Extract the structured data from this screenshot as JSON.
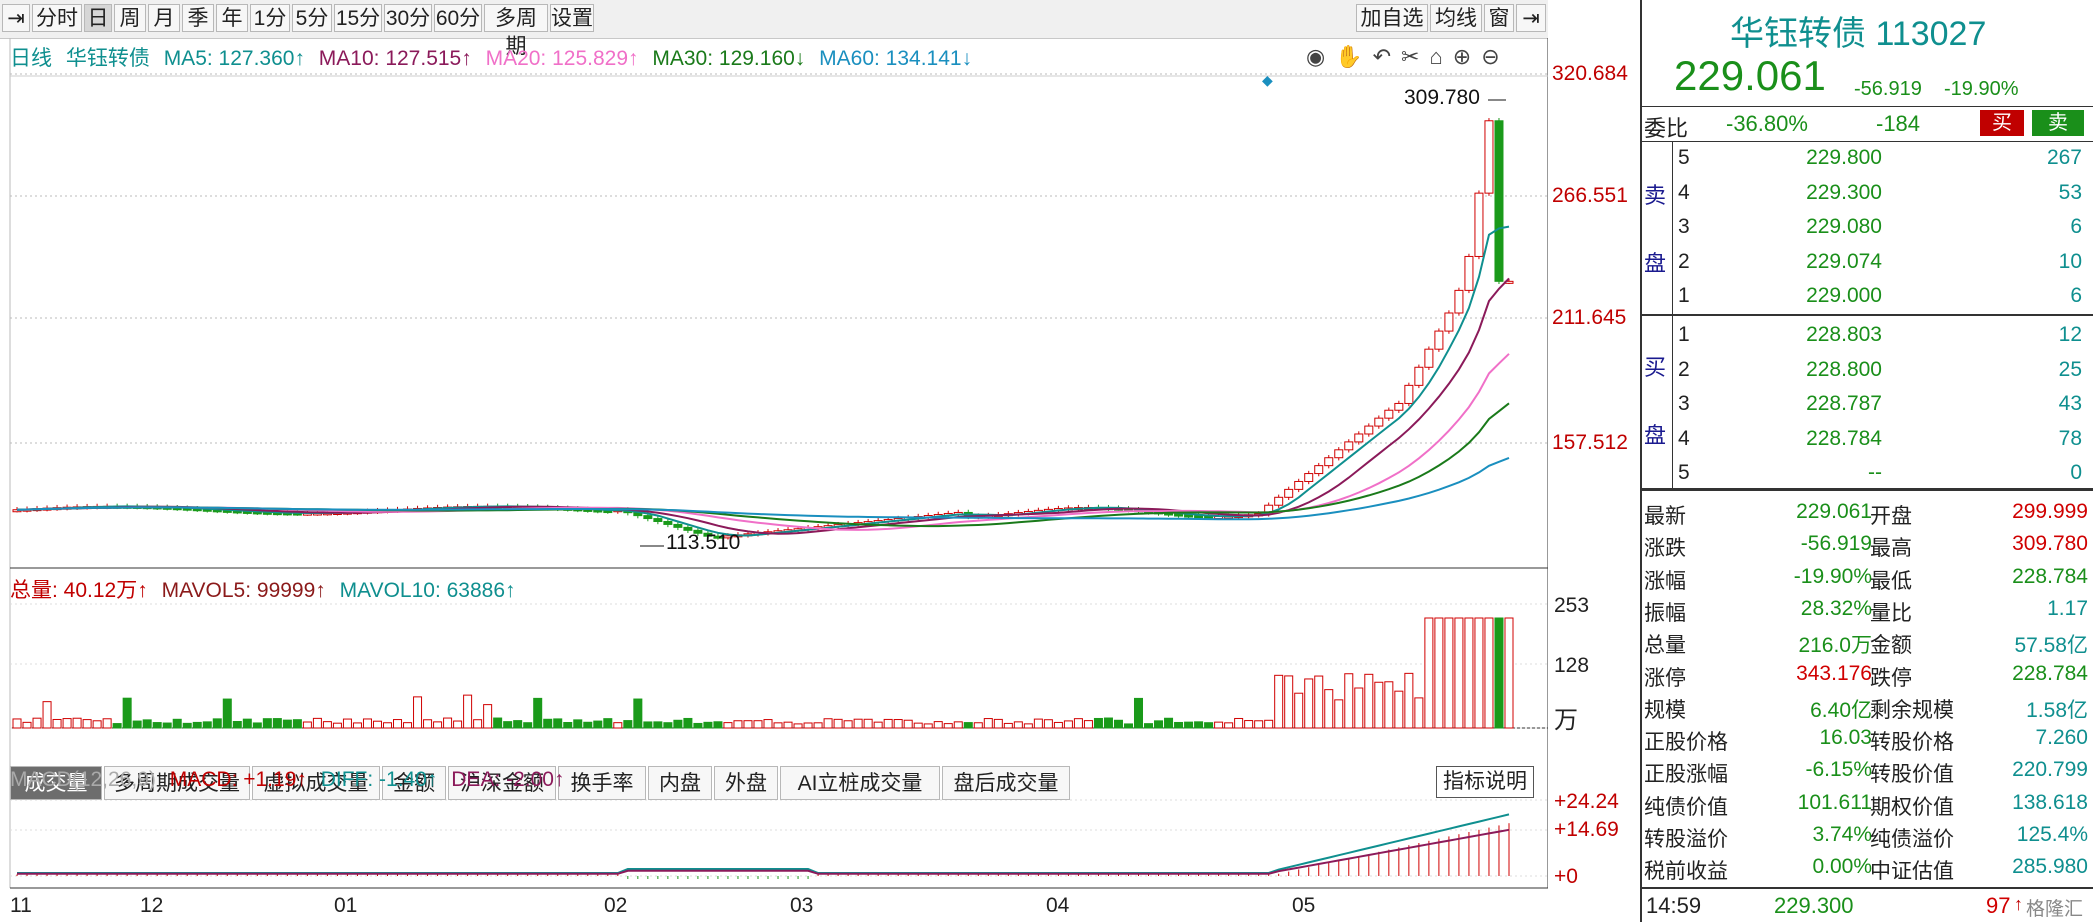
{
  "toolbar": {
    "periods": [
      "分时",
      "日",
      "周",
      "月",
      "季",
      "年",
      "1分",
      "5分",
      "15分",
      "30分",
      "60分",
      "多周期",
      "设置"
    ],
    "active": "日",
    "right_buttons": [
      "加自选",
      "均线",
      "窗"
    ]
  },
  "legend": {
    "label": "日线",
    "name": "华钰转债",
    "ma5": "MA5: 127.360↑",
    "ma10": "MA10: 127.515↑",
    "ma20": "MA20: 125.829↑",
    "ma30": "MA30: 129.160↓",
    "ma60": "MA60: 134.141↓"
  },
  "price_axis": [
    "320.684",
    "266.551",
    "211.645",
    "157.512"
  ],
  "annotations": {
    "high": "309.780",
    "low": "113.510"
  },
  "volume_legend": {
    "total": "总量: 40.12万↑",
    "mavol5": "MAVOL5: 99999↑",
    "mavol10": "MAVOL10: 63886↑"
  },
  "volume_axis": [
    "253",
    "128",
    "万"
  ],
  "subtabs": [
    "成交量",
    "多周期成交量",
    "虚拟成交量",
    "金额",
    "沪深金额",
    "换手率",
    "内盘",
    "外盘",
    "AI立桩成交量",
    "盘后成交量"
  ],
  "macd_legend": {
    "name": "MACD(12,26,9)",
    "macd": "MACD: +1.19↑",
    "diff": "DIFF: -1.40↑",
    "dea": "DEA: -2.00↑"
  },
  "macd_button": "指标说明",
  "macd_axis": [
    "+24.24",
    "+14.69",
    "+0"
  ],
  "x_axis": [
    "11",
    "12",
    "01",
    "02",
    "03",
    "04",
    "05"
  ],
  "panel": {
    "title": "华钰转债 113027",
    "price": "229.061",
    "change": "-56.919",
    "pct": "-19.90%",
    "weibi_label": "委比",
    "weibi_pct": "-36.80%",
    "weibi_num": "-184",
    "buy_btn": "买",
    "sell_btn": "卖",
    "sell_label": [
      "卖",
      "盘"
    ],
    "buy_label": [
      "买",
      "盘"
    ],
    "asks": [
      {
        "lvl": "5",
        "price": "229.800",
        "vol": "267"
      },
      {
        "lvl": "4",
        "price": "229.300",
        "vol": "53"
      },
      {
        "lvl": "3",
        "price": "229.080",
        "vol": "6"
      },
      {
        "lvl": "2",
        "price": "229.074",
        "vol": "10"
      },
      {
        "lvl": "1",
        "price": "229.000",
        "vol": "6"
      }
    ],
    "bids": [
      {
        "lvl": "1",
        "price": "228.803",
        "vol": "12"
      },
      {
        "lvl": "2",
        "price": "228.800",
        "vol": "25"
      },
      {
        "lvl": "3",
        "price": "228.787",
        "vol": "43"
      },
      {
        "lvl": "4",
        "price": "228.784",
        "vol": "78"
      },
      {
        "lvl": "5",
        "price": "--",
        "vol": "0"
      }
    ],
    "stats": [
      [
        "最新",
        "229.061",
        "开盘",
        "299.999"
      ],
      [
        "涨跌",
        "-56.919",
        "最高",
        "309.780"
      ],
      [
        "涨幅",
        "-19.90%",
        "最低",
        "228.784"
      ],
      [
        "振幅",
        "28.32%",
        "量比",
        "1.17"
      ],
      [
        "总量",
        "216.0万",
        "金额",
        "57.58亿"
      ],
      [
        "涨停",
        "343.176",
        "跌停",
        "228.784"
      ],
      [
        "规模",
        "6.40亿",
        "剩余规模",
        "1.58亿"
      ],
      [
        "正股价格",
        "16.03",
        "转股价格",
        "7.260"
      ],
      [
        "正股涨幅",
        "-6.15%",
        "转股价值",
        "220.799"
      ],
      [
        "纯债价值",
        "101.611",
        "期权价值",
        "138.618"
      ],
      [
        "转股溢价",
        "3.74%",
        "纯债溢价",
        "125.4%"
      ],
      [
        "税前收益",
        "0.00%",
        "中证估值",
        "285.980"
      ]
    ],
    "tick": {
      "time": "14:59",
      "price": "229.300",
      "vol": "97"
    },
    "watermark": "格隆汇"
  },
  "colors": {
    "up": "#d00000",
    "down": "#1a9a1a",
    "ma5": "#0f8f8f",
    "ma10": "#8b1a5a",
    "ma20": "#f070c8",
    "ma30": "#1a7a1a",
    "ma60": "#1a8fbf"
  }
}
